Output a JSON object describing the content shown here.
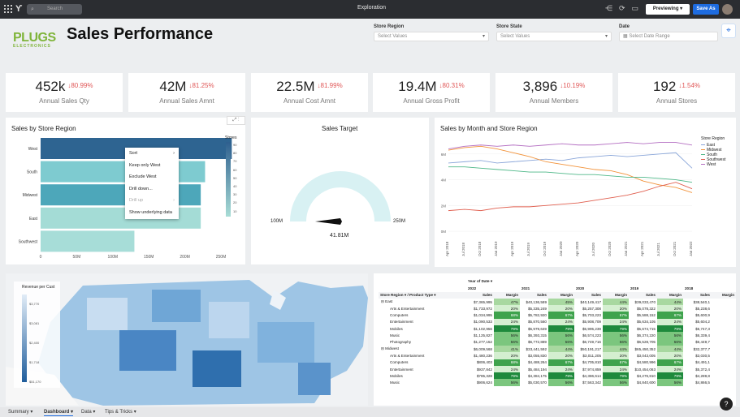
{
  "topbar": {
    "search_placeholder": "Search",
    "title": "Exploration",
    "previewing_label": "Previewing ▾",
    "save_as_label": "Save As"
  },
  "brand": {
    "name": "PLUGS",
    "sub": "ELECTRONICS"
  },
  "page_title": "Sales Performance",
  "filters": [
    {
      "label": "Store Region",
      "placeholder": "Select Values"
    },
    {
      "label": "Store State",
      "placeholder": "Select Values"
    },
    {
      "label": "Date",
      "placeholder": "Select Date Range"
    }
  ],
  "kpis": [
    {
      "value": "452k",
      "delta": "↓80.99%",
      "label": "Annual Sales Qty"
    },
    {
      "value": "42M",
      "delta": "↓81.25%",
      "label": "Annual Sales Amnt"
    },
    {
      "value": "22.5M",
      "delta": "↓81.99%",
      "label": "Annual Cost Amnt"
    },
    {
      "value": "19.4M",
      "delta": "↓80.31%",
      "label": "Annual Gross Profit"
    },
    {
      "value": "3,896",
      "delta": "↓10.19%",
      "label": "Annual Members"
    },
    {
      "value": "192",
      "delta": "↓1.54%",
      "label": "Annual Stores"
    }
  ],
  "region_chart": {
    "title": "Sales by Store Region",
    "legend_title": "Stores",
    "legend_ticks": [
      "90",
      "80",
      "70",
      "60",
      "50",
      "40",
      "30",
      "20",
      "10"
    ]
  },
  "context_menu": {
    "items": [
      "Sort",
      "Keep only West",
      "Exclude West",
      "Drill down...",
      "Drill up",
      "Show underlying data"
    ]
  },
  "gauge": {
    "title": "Sales Target",
    "min_label": "100M",
    "max_label": "250M",
    "value_label": "41.81M",
    "min": 100,
    "max": 250,
    "value": 41.81
  },
  "line_chart": {
    "title": "Sales by Month and Store Region",
    "legend_title": "Store Region"
  },
  "map_legend": {
    "title": "Revenue per Cust",
    "ticks": [
      "$3,770",
      "$3,081",
      "$2,400",
      "$1,718",
      "$51,170"
    ]
  },
  "pivot": {
    "year_label": "Year of Date ▾",
    "row_headers": "Store Region ▾  /  Product Type ▾",
    "years": [
      "2022",
      "2021",
      "2020",
      "2019",
      "2018"
    ],
    "measures": [
      "Sales",
      "Margin"
    ],
    "rows": [
      {
        "indent": 0,
        "name": "East",
        "cells": [
          "$7,365,995",
          "47%",
          "$40,136,589",
          "45%",
          "$40,149,417",
          "44%",
          "$39,033,470",
          "44%",
          "$38,540,1"
        ]
      },
      {
        "indent": 1,
        "name": "Arts & Entertainment",
        "cells": [
          "$1,733,972",
          "20%",
          "$5,335,249",
          "20%",
          "$5,257,308",
          "20%",
          "$5,078,322",
          "20%",
          "$5,238,6"
        ]
      },
      {
        "indent": 1,
        "name": "Computers",
        "cells": [
          "$1,034,995",
          "68%",
          "$5,782,920",
          "67%",
          "$5,703,223",
          "67%",
          "$5,588,152",
          "67%",
          "$5,600,9"
        ]
      },
      {
        "indent": 1,
        "name": "Entertainment",
        "cells": [
          "$1,090,533",
          "24%",
          "$5,870,560",
          "24%",
          "$5,908,709",
          "24%",
          "$5,634,105",
          "24%",
          "$5,604,2"
        ]
      },
      {
        "indent": 1,
        "name": "Mobiles",
        "cells": [
          "$1,102,956",
          "79%",
          "$5,979,649",
          "79%",
          "$5,995,239",
          "79%",
          "$5,674,715",
          "79%",
          "$5,747,3"
        ]
      },
      {
        "indent": 1,
        "name": "Music",
        "cells": [
          "$1,125,827",
          "56%",
          "$6,393,315",
          "56%",
          "$6,574,223",
          "56%",
          "$6,374,220",
          "56%",
          "$6,339,4"
        ]
      },
      {
        "indent": 1,
        "name": "Photography",
        "cells": [
          "$1,277,152",
          "56%",
          "$6,772,889",
          "56%",
          "$6,749,716",
          "56%",
          "$6,528,705",
          "56%",
          "$6,449,7"
        ]
      },
      {
        "indent": 0,
        "name": "Midwest",
        "cells": [
          "$6,009,568",
          "41%",
          "$33,441,592",
          "44%",
          "$50,191,217",
          "44%",
          "$65,450,352",
          "44%",
          "$32,377,7"
        ]
      },
      {
        "indent": 1,
        "name": "Arts & Entertainment",
        "cells": [
          "$1,480,236",
          "20%",
          "$3,055,830",
          "20%",
          "$3,011,205",
          "20%",
          "$3,043,005",
          "20%",
          "$3,030,5"
        ]
      },
      {
        "indent": 1,
        "name": "Computers",
        "cells": [
          "$806,403",
          "68%",
          "$4,488,264",
          "67%",
          "$4,705,810",
          "67%",
          "$4,580,996",
          "67%",
          "$4,491,1"
        ]
      },
      {
        "indent": 1,
        "name": "Entertainment",
        "cells": [
          "$937,842",
          "24%",
          "$5,484,194",
          "24%",
          "$7,974,859",
          "24%",
          "$10,454,063",
          "24%",
          "$5,372,4"
        ]
      },
      {
        "indent": 1,
        "name": "Mobiles",
        "cells": [
          "$785,328",
          "79%",
          "$4,384,175",
          "79%",
          "$4,386,614",
          "79%",
          "$4,276,810",
          "79%",
          "$4,289,8"
        ]
      },
      {
        "indent": 1,
        "name": "Music",
        "cells": [
          "$906,624",
          "56%",
          "$5,030,570",
          "56%",
          "$7,563,342",
          "56%",
          "$4,840,600",
          "56%",
          "$4,866,5"
        ]
      }
    ]
  },
  "tabs": [
    {
      "label": "Summary ▾",
      "active": false
    },
    {
      "label": "Dashboard ▾",
      "active": true
    },
    {
      "label": "Data ▾",
      "active": false
    },
    {
      "label": "Tips & Tricks ▾",
      "active": false
    }
  ],
  "chart_data": [
    {
      "type": "bar",
      "title": "Sales by Store Region",
      "categories": [
        "West",
        "South",
        "Midwest",
        "East",
        "Southwest"
      ],
      "values": [
        265,
        228,
        222,
        222,
        130
      ],
      "xticks": [
        "0",
        "50M",
        "100M",
        "150M",
        "200M",
        "250M"
      ],
      "xlim": [
        0,
        280
      ],
      "stores": [
        90,
        30,
        60,
        20,
        15
      ],
      "colors": [
        "#2e6491",
        "#7ecbd0",
        "#4da7ba",
        "#a4dcd6",
        "#a7ddd8"
      ]
    },
    {
      "type": "line",
      "title": "Sales by Month and Store Region",
      "yticks": [
        "6M",
        "4M",
        "2M",
        "0M"
      ],
      "ylim": [
        0,
        7
      ],
      "x": [
        "Apr 2018",
        "Jul 2018",
        "Oct 2018",
        "Jan 2019",
        "Apr 2019",
        "Jul 2019",
        "Oct 2019",
        "Jan 2020",
        "Apr 2020",
        "Jul 2020",
        "Oct 2020",
        "Jan 2021",
        "Apr 2021",
        "Jul 2021",
        "Oct 2021",
        "Jan 2022"
      ],
      "series": [
        {
          "name": "East",
          "color": "#8aa6d9",
          "values": [
            5.3,
            5.4,
            5.5,
            5.3,
            5.4,
            5.5,
            5.6,
            5.5,
            5.7,
            5.8,
            5.9,
            5.8,
            5.9,
            6.0,
            6.1,
            4.9
          ]
        },
        {
          "name": "Midwest",
          "color": "#f2933b",
          "values": [
            6.3,
            6.5,
            6.6,
            6.4,
            6.1,
            5.8,
            5.4,
            5.2,
            5.0,
            4.8,
            4.7,
            4.4,
            3.9,
            3.6,
            3.4,
            3.0
          ]
        },
        {
          "name": "South",
          "color": "#4fb889",
          "values": [
            5.0,
            5.0,
            4.9,
            4.8,
            4.7,
            4.6,
            4.6,
            4.5,
            4.4,
            4.4,
            4.3,
            4.2,
            4.2,
            4.1,
            4.0,
            3.8
          ]
        },
        {
          "name": "Southwest",
          "color": "#e05f4f",
          "values": [
            1.6,
            1.7,
            1.6,
            1.8,
            1.9,
            1.9,
            2.0,
            2.1,
            2.2,
            2.4,
            2.6,
            2.8,
            3.1,
            3.5,
            3.8,
            3.3
          ]
        },
        {
          "name": "West",
          "color": "#b46fc2",
          "values": [
            6.4,
            6.6,
            6.7,
            6.6,
            6.7,
            6.6,
            6.7,
            6.8,
            6.7,
            6.7,
            6.8,
            6.9,
            6.8,
            6.9,
            6.9,
            6.7
          ]
        }
      ]
    }
  ]
}
